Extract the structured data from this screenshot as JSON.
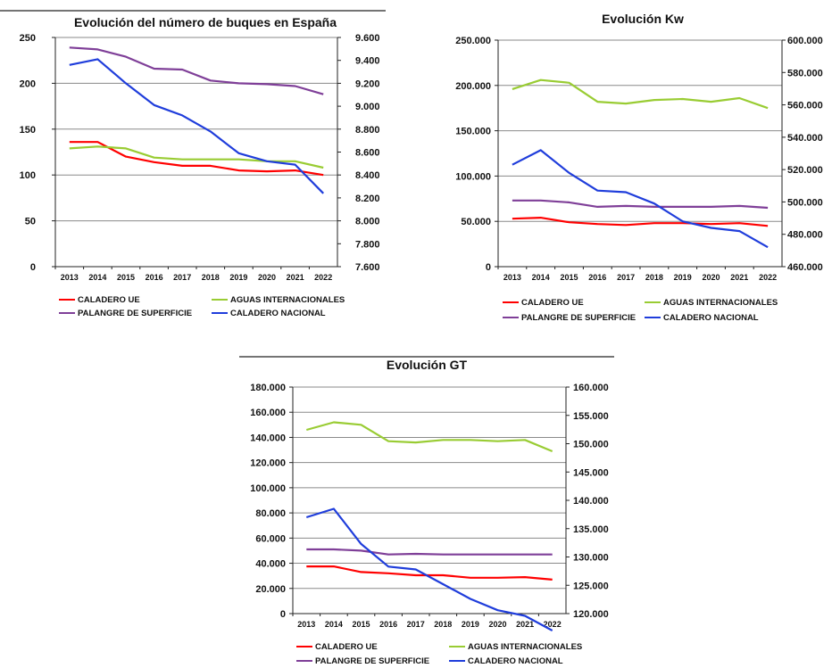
{
  "chart_data": [
    {
      "type": "line",
      "title": "Evolución del número de buques en España",
      "x": [
        "2013",
        "2014",
        "2015",
        "2016",
        "2017",
        "2018",
        "2019",
        "2020",
        "2021",
        "2022"
      ],
      "ylim": [
        0,
        250
      ],
      "yticks": [
        "0",
        "50",
        "100",
        "150",
        "200",
        "250"
      ],
      "y2lim": [
        7600,
        9600
      ],
      "y2ticks": [
        "7.600",
        "7.800",
        "8.000",
        "8.200",
        "8.400",
        "8.600",
        "8.800",
        "9.000",
        "9.200",
        "9.400",
        "9.600"
      ],
      "grid": true,
      "legend_position": "bottom",
      "series": [
        {
          "name": "CALADERO UE",
          "color": "#ff0000",
          "axis": "left",
          "values": [
            136,
            136,
            120,
            114,
            110,
            110,
            105,
            104,
            105,
            100
          ]
        },
        {
          "name": "AGUAS INTERNACIONALES",
          "color": "#99cc33",
          "axis": "left",
          "values": [
            129,
            131,
            129,
            119,
            117,
            117,
            117,
            115,
            115,
            108
          ]
        },
        {
          "name": "PALANGRE DE SUPERFICIE",
          "color": "#7f3f98",
          "axis": "left",
          "values": [
            239,
            237,
            229,
            216,
            215,
            203,
            200,
            199,
            197,
            188
          ]
        },
        {
          "name": "CALADERO NACIONAL",
          "color": "#1f3ddb",
          "axis": "right",
          "values": [
            9360,
            9410,
            9200,
            9010,
            8920,
            8780,
            8590,
            8520,
            8490,
            8240
          ]
        }
      ]
    },
    {
      "type": "line",
      "title": "Evolución Kw",
      "x": [
        "2013",
        "2014",
        "2015",
        "2016",
        "2017",
        "2018",
        "2019",
        "2020",
        "2021",
        "2022"
      ],
      "ylim": [
        0,
        250000
      ],
      "yticks": [
        "0",
        "50.000",
        "100.000",
        "150.000",
        "200.000",
        "250.000"
      ],
      "y2lim": [
        460000,
        600000
      ],
      "y2ticks": [
        "460.000",
        "480.000",
        "500.000",
        "520.000",
        "540.000",
        "560.000",
        "580.000",
        "600.000"
      ],
      "grid": true,
      "legend_position": "bottom",
      "series": [
        {
          "name": "CALADERO UE",
          "color": "#ff0000",
          "axis": "left",
          "values": [
            53000,
            54000,
            49000,
            47000,
            46000,
            48000,
            48000,
            47000,
            48000,
            45000
          ]
        },
        {
          "name": "AGUAS INTERNACIONALES",
          "color": "#99cc33",
          "axis": "left",
          "values": [
            196000,
            206000,
            203000,
            182000,
            180000,
            184000,
            185000,
            182000,
            186000,
            175000
          ]
        },
        {
          "name": "PALANGRE DE SUPERFICIE",
          "color": "#7f3f98",
          "axis": "left",
          "values": [
            73000,
            73000,
            71000,
            66000,
            67000,
            66000,
            66000,
            66000,
            67000,
            65000
          ]
        },
        {
          "name": "CALADERO NACIONAL",
          "color": "#1f3ddb",
          "axis": "right",
          "values": [
            523000,
            532000,
            518000,
            507000,
            506000,
            499000,
            488000,
            484000,
            482000,
            472000
          ]
        }
      ]
    },
    {
      "type": "line",
      "title": "Evolución GT",
      "x": [
        "2013",
        "2014",
        "2015",
        "2016",
        "2017",
        "2018",
        "2019",
        "2020",
        "2021",
        "2022"
      ],
      "ylim": [
        0,
        180000
      ],
      "yticks": [
        "0",
        "20.000",
        "40.000",
        "60.000",
        "80.000",
        "100.000",
        "120.000",
        "140.000",
        "160.000",
        "180.000"
      ],
      "y2lim": [
        120000,
        160000
      ],
      "y2ticks": [
        "120.000",
        "125.000",
        "130.000",
        "135.000",
        "140.000",
        "145.000",
        "150.000",
        "155.000",
        "160.000"
      ],
      "grid": true,
      "legend_position": "bottom",
      "series": [
        {
          "name": "CALADERO UE",
          "color": "#ff0000",
          "axis": "left",
          "values": [
            37500,
            37500,
            33000,
            32000,
            30500,
            30500,
            28500,
            28500,
            29000,
            27000
          ]
        },
        {
          "name": "AGUAS INTERNACIONALES",
          "color": "#99cc33",
          "axis": "left",
          "values": [
            146000,
            152000,
            150000,
            137000,
            136000,
            138000,
            138000,
            137000,
            138000,
            129000
          ]
        },
        {
          "name": "PALANGRE DE SUPERFICIE",
          "color": "#7f3f98",
          "axis": "left",
          "values": [
            51000,
            51000,
            50000,
            47000,
            47500,
            47000,
            47000,
            47000,
            47000,
            47000
          ]
        },
        {
          "name": "CALADERO NACIONAL",
          "color": "#1f3ddb",
          "axis": "right",
          "values": [
            137000,
            138500,
            132300,
            128300,
            127800,
            125200,
            122600,
            120600,
            119600,
            117000
          ]
        }
      ]
    }
  ]
}
